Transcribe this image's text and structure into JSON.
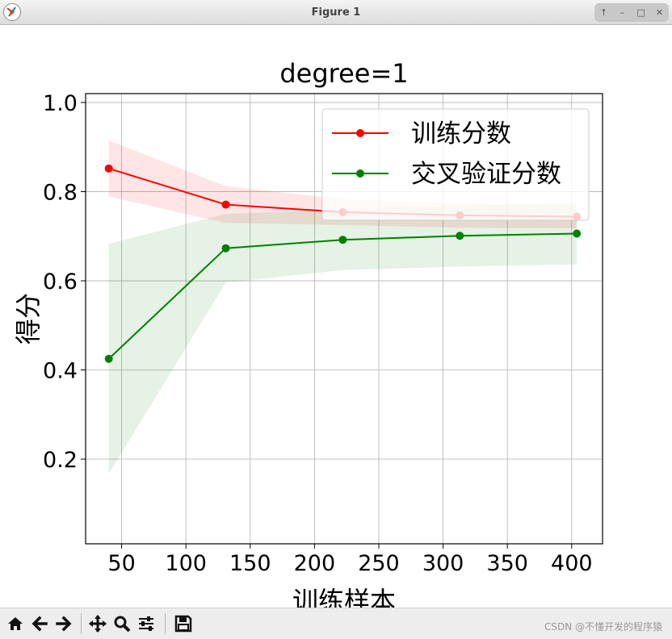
{
  "window": {
    "title": "Figure 1",
    "controls": [
      "up-arrow",
      "minimize",
      "maximize",
      "close"
    ]
  },
  "chart_data": {
    "type": "line",
    "title": "degree=1",
    "xlabel": "训练样本",
    "ylabel": "得分",
    "xlim": [
      22,
      424
    ],
    "ylim": [
      0.01,
      1.02
    ],
    "xticks": [
      50,
      100,
      150,
      200,
      250,
      300,
      350,
      400
    ],
    "xtick_labels": [
      "50",
      "100",
      "150",
      "200",
      "250",
      "300",
      "350",
      "400"
    ],
    "yticks": [
      0.2,
      0.4,
      0.6,
      0.8,
      1.0
    ],
    "ytick_labels": [
      "0.2",
      "0.4",
      "0.6",
      "0.8",
      "1.0"
    ],
    "grid": true,
    "legend_position": "top-right",
    "x": [
      40,
      131,
      222,
      313,
      404
    ],
    "series": [
      {
        "name": "训练分数",
        "color": "#ff0000",
        "values": [
          0.852,
          0.771,
          0.754,
          0.747,
          0.744
        ],
        "band_upper": [
          0.915,
          0.812,
          0.783,
          0.775,
          0.77
        ],
        "band_lower": [
          0.789,
          0.73,
          0.725,
          0.719,
          0.718
        ]
      },
      {
        "name": "交叉验证分数",
        "color": "#008000",
        "values": [
          0.425,
          0.673,
          0.692,
          0.701,
          0.706
        ],
        "band_upper": [
          0.683,
          0.75,
          0.76,
          0.77,
          0.775
        ],
        "band_lower": [
          0.167,
          0.596,
          0.624,
          0.632,
          0.637
        ]
      }
    ]
  },
  "toolbar": {
    "buttons": [
      "home-icon",
      "back-icon",
      "forward-icon",
      "pan-icon",
      "zoom-icon",
      "configure-subplots-icon",
      "save-icon"
    ]
  },
  "status": {
    "text": "CSDN @不懂开发的程序猿"
  }
}
